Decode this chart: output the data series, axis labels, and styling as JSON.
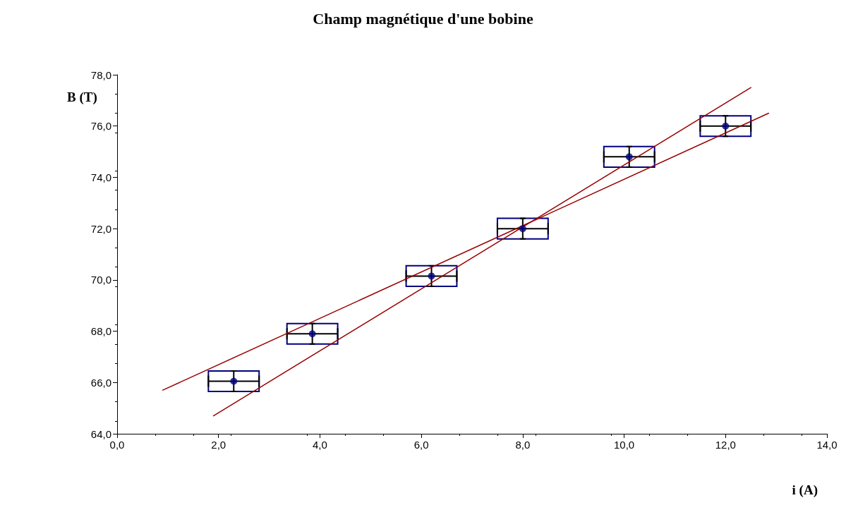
{
  "chart_data": {
    "type": "scatter",
    "title": "Champ magnétique d'une bobine",
    "xlabel": "i (A)",
    "ylabel": "B (T)",
    "xlim": [
      0,
      14
    ],
    "ylim": [
      64,
      78
    ],
    "xticks": [
      {
        "value": 0,
        "label": "0,0"
      },
      {
        "value": 2,
        "label": "2,0"
      },
      {
        "value": 4,
        "label": "4,0"
      },
      {
        "value": 6,
        "label": "6,0"
      },
      {
        "value": 8,
        "label": "8,0"
      },
      {
        "value": 10,
        "label": "10,0"
      },
      {
        "value": 12,
        "label": "12,0"
      },
      {
        "value": 14,
        "label": "14,0"
      }
    ],
    "yticks": [
      {
        "value": 64,
        "label": "64,0"
      },
      {
        "value": 66,
        "label": "66,0"
      },
      {
        "value": 68,
        "label": "68,0"
      },
      {
        "value": 70,
        "label": "70,0"
      },
      {
        "value": 72,
        "label": "72,0"
      },
      {
        "value": 74,
        "label": "74,0"
      },
      {
        "value": 76,
        "label": "76,0"
      },
      {
        "value": 78,
        "label": "78,0"
      }
    ],
    "grid": false,
    "series": [
      {
        "type": "scatter",
        "color": "#000080",
        "marker": "circle",
        "x": [
          2.3,
          3.85,
          6.2,
          8.0,
          10.1,
          12.0
        ],
        "values": [
          66.05,
          67.9,
          70.15,
          72.0,
          74.8,
          76.0
        ],
        "errors": [
          0.4,
          0.4,
          0.4,
          0.4,
          0.4,
          0.4
        ],
        "xerrors": [
          0.5,
          0.5,
          0.5,
          0.5,
          0.5,
          0.5
        ]
      },
      {
        "type": "line",
        "color": "#990000",
        "marker": "none",
        "x": [
          1.9,
          12.5
        ],
        "values": [
          64.7,
          77.5
        ]
      },
      {
        "type": "line",
        "color": "#990000",
        "marker": "none",
        "x": [
          0.9,
          12.85
        ],
        "values": [
          65.7,
          76.5
        ]
      }
    ]
  }
}
